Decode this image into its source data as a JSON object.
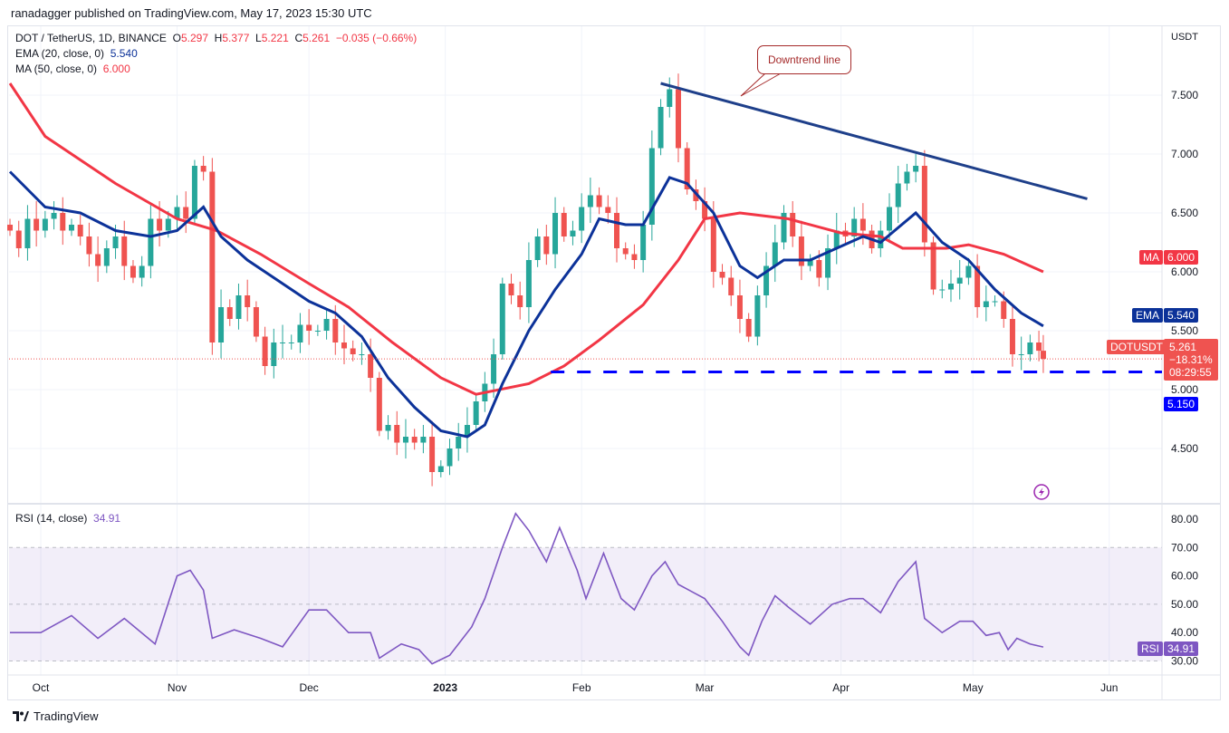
{
  "header": {
    "published": "ranadagger published on TradingView.com, May 17, 2023 15:30 UTC"
  },
  "legend": {
    "symbol": "DOT / TetherUS, 1D, BINANCE",
    "o_label": "O",
    "o": "5.297",
    "h_label": "H",
    "h": "5.377",
    "l_label": "L",
    "l": "5.221",
    "c_label": "C",
    "c": "5.261",
    "change": "−0.035 (−0.66%)",
    "ema_label": "EMA (20, close, 0)",
    "ema_value": "5.540",
    "ma_label": "MA (50, close, 0)",
    "ma_value": "6.000",
    "rsi_label": "RSI (14, close)",
    "rsi_value": "34.91"
  },
  "tags": {
    "ma_name": "MA",
    "ma": "6.000",
    "ema_name": "EMA",
    "ema": "5.540",
    "sym_name": "DOTUSDT",
    "price": "5.261",
    "pct": "−18.31%",
    "timer": "08:29:55",
    "support": "5.150",
    "rsi_name": "RSI",
    "rsi": "34.91"
  },
  "annotation": {
    "callout": "Downtrend line"
  },
  "footer": {
    "brand": "TradingView"
  },
  "colors": {
    "up": "#26a69a",
    "down": "#ef5350",
    "ema": "#0c3299",
    "ma": "#f23645",
    "trend": "#1e3f8a",
    "support": "#0000ff",
    "rsi": "#7e57c2"
  },
  "chart_data": [
    {
      "type": "candlestick",
      "title": "DOT / TetherUS, 1D, BINANCE",
      "ylabel": "USDT",
      "ylim": [
        4.1,
        7.9
      ],
      "yticks": [
        "7.500",
        "7.000",
        "6.500",
        "6.000",
        "5.500",
        "5.000",
        "4.500"
      ],
      "xticks": [
        {
          "label": "Oct",
          "date": "2022-10-01"
        },
        {
          "label": "Nov",
          "date": "2022-11-01"
        },
        {
          "label": "Dec",
          "date": "2022-12-01"
        },
        {
          "label": "2023",
          "date": "2023-01-01"
        },
        {
          "label": "Feb",
          "date": "2023-02-01"
        },
        {
          "label": "Mar",
          "date": "2023-03-01"
        },
        {
          "label": "Apr",
          "date": "2023-04-01"
        },
        {
          "label": "May",
          "date": "2023-05-01"
        },
        {
          "label": "Jun",
          "date": "2023-06-01"
        }
      ],
      "dates": [
        "2022-09-24",
        "2022-09-26",
        "2022-09-28",
        "2022-09-30",
        "2022-10-02",
        "2022-10-04",
        "2022-10-06",
        "2022-10-08",
        "2022-10-10",
        "2022-10-12",
        "2022-10-14",
        "2022-10-16",
        "2022-10-18",
        "2022-10-20",
        "2022-10-22",
        "2022-10-24",
        "2022-10-26",
        "2022-10-28",
        "2022-10-30",
        "2022-11-01",
        "2022-11-03",
        "2022-11-05",
        "2022-11-07",
        "2022-11-09",
        "2022-11-11",
        "2022-11-13",
        "2022-11-15",
        "2022-11-17",
        "2022-11-19",
        "2022-11-21",
        "2022-11-23",
        "2022-11-25",
        "2022-11-27",
        "2022-11-29",
        "2022-12-01",
        "2022-12-03",
        "2022-12-05",
        "2022-12-07",
        "2022-12-09",
        "2022-12-11",
        "2022-12-13",
        "2022-12-15",
        "2022-12-17",
        "2022-12-19",
        "2022-12-21",
        "2022-12-23",
        "2022-12-25",
        "2022-12-27",
        "2022-12-29",
        "2022-12-31",
        "2023-01-02",
        "2023-01-04",
        "2023-01-06",
        "2023-01-08",
        "2023-01-10",
        "2023-01-12",
        "2023-01-14",
        "2023-01-16",
        "2023-01-18",
        "2023-01-20",
        "2023-01-22",
        "2023-01-24",
        "2023-01-26",
        "2023-01-28",
        "2023-01-30",
        "2023-02-01",
        "2023-02-03",
        "2023-02-05",
        "2023-02-07",
        "2023-02-09",
        "2023-02-11",
        "2023-02-13",
        "2023-02-15",
        "2023-02-17",
        "2023-02-19",
        "2023-02-21",
        "2023-02-23",
        "2023-02-25",
        "2023-02-27",
        "2023-03-01",
        "2023-03-03",
        "2023-03-05",
        "2023-03-07",
        "2023-03-09",
        "2023-03-11",
        "2023-03-13",
        "2023-03-15",
        "2023-03-17",
        "2023-03-19",
        "2023-03-21",
        "2023-03-23",
        "2023-03-25",
        "2023-03-27",
        "2023-03-29",
        "2023-03-31",
        "2023-04-02",
        "2023-04-04",
        "2023-04-06",
        "2023-04-08",
        "2023-04-10",
        "2023-04-12",
        "2023-04-14",
        "2023-04-16",
        "2023-04-18",
        "2023-04-20",
        "2023-04-22",
        "2023-04-24",
        "2023-04-26",
        "2023-04-28",
        "2023-04-30",
        "2023-05-02",
        "2023-05-04",
        "2023-05-06",
        "2023-05-08",
        "2023-05-10",
        "2023-05-12",
        "2023-05-14",
        "2023-05-16",
        "2023-05-17"
      ],
      "close": [
        6.35,
        6.2,
        6.45,
        6.35,
        6.45,
        6.5,
        6.35,
        6.4,
        6.3,
        6.15,
        6.05,
        6.2,
        6.3,
        6.05,
        5.95,
        6.05,
        6.45,
        6.35,
        6.45,
        6.55,
        6.45,
        6.9,
        6.85,
        5.4,
        5.7,
        5.6,
        5.8,
        5.7,
        5.45,
        5.2,
        5.4,
        5.4,
        5.4,
        5.55,
        5.5,
        5.5,
        5.6,
        5.4,
        5.35,
        5.3,
        5.3,
        5.1,
        4.65,
        4.7,
        4.55,
        4.6,
        4.55,
        4.6,
        4.3,
        4.35,
        4.5,
        4.6,
        4.7,
        4.9,
        5.05,
        5.3,
        5.9,
        5.8,
        5.7,
        6.1,
        6.3,
        6.15,
        6.5,
        6.3,
        6.35,
        6.55,
        6.65,
        6.55,
        6.5,
        6.2,
        6.15,
        6.1,
        6.4,
        7.05,
        7.4,
        7.55,
        7.05,
        6.7,
        6.6,
        6.45,
        6.0,
        5.95,
        5.8,
        5.6,
        5.45,
        5.8,
        6.05,
        6.25,
        6.5,
        6.3,
        6.05,
        6.1,
        5.95,
        6.2,
        6.35,
        6.3,
        6.45,
        6.35,
        6.2,
        6.35,
        6.55,
        6.75,
        6.85,
        6.9,
        6.25,
        5.85,
        5.85,
        5.9,
        5.95,
        6.05,
        5.7,
        5.75,
        5.75,
        5.6,
        5.3,
        5.3,
        5.4,
        5.33,
        5.261
      ],
      "ema20": {
        "dates": [
          "2022-09-24",
          "2022-10-02",
          "2022-10-10",
          "2022-10-18",
          "2022-10-26",
          "2022-11-01",
          "2022-11-07",
          "2022-11-11",
          "2022-11-17",
          "2022-11-23",
          "2022-12-01",
          "2022-12-07",
          "2022-12-13",
          "2022-12-19",
          "2022-12-25",
          "2022-12-31",
          "2023-01-06",
          "2023-01-10",
          "2023-01-14",
          "2023-01-20",
          "2023-01-26",
          "2023-02-01",
          "2023-02-05",
          "2023-02-11",
          "2023-02-15",
          "2023-02-21",
          "2023-02-25",
          "2023-03-03",
          "2023-03-09",
          "2023-03-13",
          "2023-03-19",
          "2023-03-25",
          "2023-03-31",
          "2023-04-06",
          "2023-04-10",
          "2023-04-18",
          "2023-04-24",
          "2023-04-30",
          "2023-05-06",
          "2023-05-12",
          "2023-05-17"
        ],
        "values": [
          6.85,
          6.55,
          6.5,
          6.35,
          6.3,
          6.35,
          6.55,
          6.3,
          6.1,
          5.95,
          5.75,
          5.65,
          5.45,
          5.1,
          4.85,
          4.65,
          4.6,
          4.7,
          5.05,
          5.5,
          5.85,
          6.15,
          6.45,
          6.4,
          6.4,
          6.8,
          6.75,
          6.5,
          6.05,
          5.95,
          6.1,
          6.1,
          6.2,
          6.3,
          6.25,
          6.5,
          6.25,
          6.1,
          5.85,
          5.65,
          5.54
        ]
      },
      "ma50": {
        "dates": [
          "2022-09-24",
          "2022-10-02",
          "2022-10-18",
          "2022-11-01",
          "2022-11-10",
          "2022-11-20",
          "2022-12-01",
          "2022-12-10",
          "2022-12-20",
          "2022-12-31",
          "2023-01-08",
          "2023-01-20",
          "2023-01-28",
          "2023-02-05",
          "2023-02-15",
          "2023-02-23",
          "2023-03-01",
          "2023-03-09",
          "2023-03-20",
          "2023-04-01",
          "2023-04-10",
          "2023-04-15",
          "2023-04-25",
          "2023-04-30",
          "2023-05-08",
          "2023-05-17"
        ],
        "values": [
          7.6,
          7.15,
          6.75,
          6.45,
          6.35,
          6.15,
          5.9,
          5.7,
          5.4,
          5.1,
          4.96,
          5.05,
          5.2,
          5.42,
          5.72,
          6.1,
          6.45,
          6.5,
          6.45,
          6.33,
          6.3,
          6.2,
          6.2,
          6.23,
          6.15,
          6.0
        ]
      },
      "downtrend_line": {
        "from": {
          "date": "2023-02-19",
          "price": 7.6
        },
        "to": {
          "date": "2023-05-27",
          "price": 6.62
        }
      },
      "support_line": {
        "from_date": "2023-01-25",
        "price": 5.15
      },
      "last_price": 5.261
    },
    {
      "type": "line",
      "title": "RSI (14, close)",
      "ylim": [
        27,
        84
      ],
      "yticks": [
        "80.00",
        "70.00",
        "60.00",
        "50.00",
        "40.00",
        "30.00"
      ],
      "band": [
        30,
        70
      ],
      "midline": 50,
      "dates": [
        "2022-09-24",
        "2022-10-01",
        "2022-10-08",
        "2022-10-14",
        "2022-10-20",
        "2022-10-27",
        "2022-11-01",
        "2022-11-04",
        "2022-11-07",
        "2022-11-09",
        "2022-11-14",
        "2022-11-20",
        "2022-11-25",
        "2022-12-01",
        "2022-12-05",
        "2022-12-10",
        "2022-12-15",
        "2022-12-17",
        "2022-12-22",
        "2022-12-26",
        "2022-12-29",
        "2023-01-02",
        "2023-01-07",
        "2023-01-10",
        "2023-01-14",
        "2023-01-17",
        "2023-01-20",
        "2023-01-24",
        "2023-01-27",
        "2023-01-31",
        "2023-02-02",
        "2023-02-06",
        "2023-02-10",
        "2023-02-13",
        "2023-02-17",
        "2023-02-20",
        "2023-02-23",
        "2023-03-01",
        "2023-03-05",
        "2023-03-09",
        "2023-03-11",
        "2023-03-14",
        "2023-03-17",
        "2023-03-20",
        "2023-03-25",
        "2023-03-30",
        "2023-04-03",
        "2023-04-06",
        "2023-04-10",
        "2023-04-14",
        "2023-04-18",
        "2023-04-20",
        "2023-04-24",
        "2023-04-28",
        "2023-05-01",
        "2023-05-04",
        "2023-05-07",
        "2023-05-09",
        "2023-05-11",
        "2023-05-14",
        "2023-05-17"
      ],
      "values": [
        40,
        40,
        46,
        38,
        45,
        36,
        60,
        62,
        55,
        38,
        41,
        38,
        35,
        48,
        48,
        40,
        40,
        31,
        36,
        34,
        29,
        32,
        42,
        52,
        70,
        82,
        76,
        65,
        77,
        62,
        52,
        68,
        52,
        48,
        60,
        65,
        57,
        52,
        44,
        35,
        32,
        44,
        53,
        49,
        43,
        50,
        52,
        52,
        47,
        58,
        65,
        45,
        40,
        44,
        44,
        39,
        40,
        34,
        38,
        36,
        34.91
      ]
    }
  ]
}
